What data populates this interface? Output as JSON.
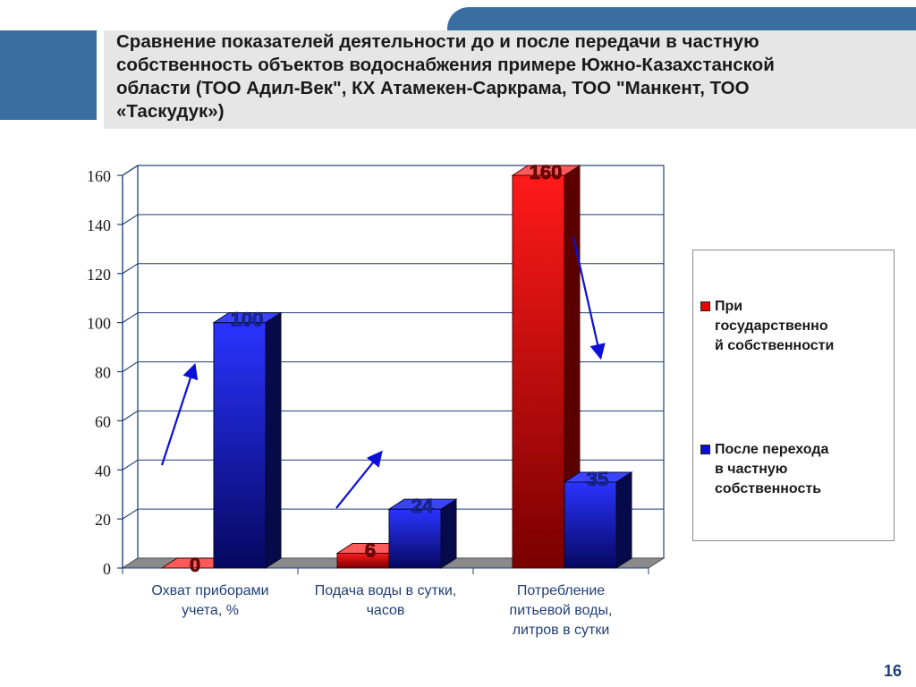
{
  "slide": {
    "title": "Сравнение показателей деятельности до и после передачи в частную\nсобственность объектов водоснабжения примере Южно-Казахстанской\nобласти  (ТОО Адил-Век\", КХ Атамекен-Саркрама, ТОО \"Манкент,  ТОО\n«Таскудук»)",
    "page_number": "16"
  },
  "colors": {
    "before": "#ee0000",
    "after": "#0a10d8",
    "frame": "#1f3f77",
    "arrow": "#0a10d8"
  },
  "chart_data": {
    "type": "bar",
    "categories": [
      "Охват приборами\nучета, %",
      "Подача воды в сутки,\nчасов",
      "Потребление\nпитьевой воды,\nлитров в сутки"
    ],
    "series": [
      {
        "name": "При\nгосударственно\nй собственности",
        "values": [
          0,
          6,
          160
        ],
        "labels": [
          "0",
          "6",
          "160"
        ]
      },
      {
        "name": "После перехода\nв частную\nсобственность",
        "values": [
          100,
          24,
          35
        ],
        "labels": [
          "100",
          "24",
          "35"
        ]
      }
    ],
    "y_ticks": [
      "0",
      "20",
      "40",
      "60",
      "80",
      "100",
      "120",
      "140",
      "160"
    ],
    "ylim": [
      0,
      160
    ],
    "grid": true,
    "legend_position": "right"
  }
}
